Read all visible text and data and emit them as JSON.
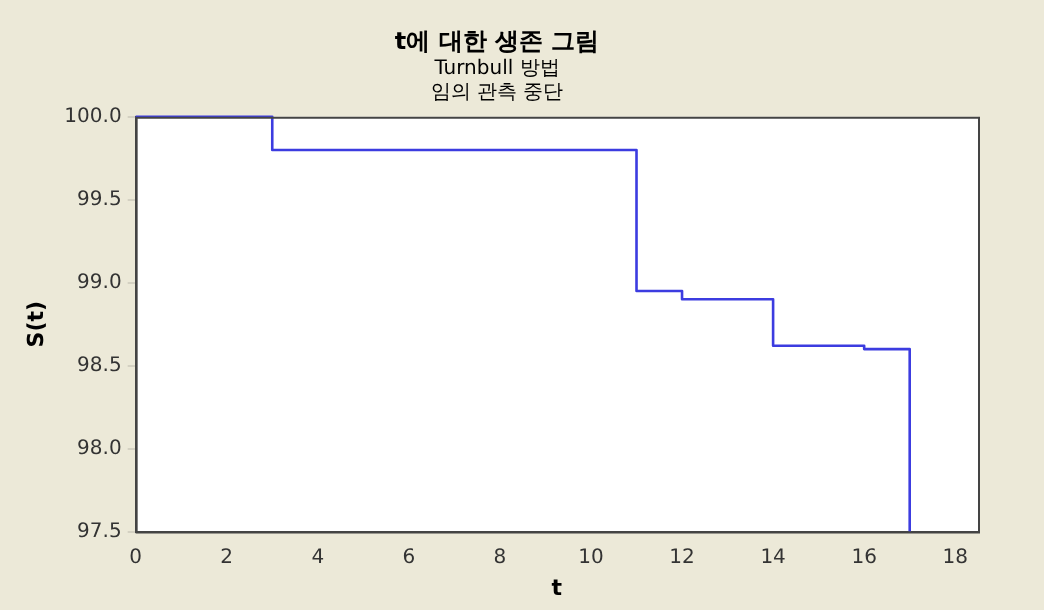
{
  "chart_data": {
    "type": "step",
    "title": "t에 대한 생존 그림",
    "subtitle": "Turnbull 방법\n임의 관측 중단",
    "xlabel": "t",
    "ylabel": "S(t)",
    "x": [
      0,
      3,
      11,
      12,
      14,
      16,
      17
    ],
    "series": [
      {
        "color": "#3c3ce0",
        "values": [
          100,
          99.8,
          98.95,
          98.9,
          98.62,
          98.6,
          97.5
        ]
      }
    ],
    "xlim": [
      0,
      18.5
    ],
    "xticks": [
      0,
      2,
      4,
      6,
      8,
      10,
      12,
      14,
      16,
      18
    ],
    "ylim": [
      97.5,
      100
    ],
    "yticks": [
      {
        "value": 97.5,
        "label": "97.5"
      },
      {
        "value": 98,
        "label": "98.0"
      },
      {
        "value": 98.5,
        "label": "98.5"
      },
      {
        "value": 99,
        "label": "99.0"
      },
      {
        "value": 99.5,
        "label": "99.5"
      },
      {
        "value": 100,
        "label": "100.0"
      }
    ],
    "grid": false,
    "legend": false,
    "marker": "none",
    "line_style": "solid"
  }
}
